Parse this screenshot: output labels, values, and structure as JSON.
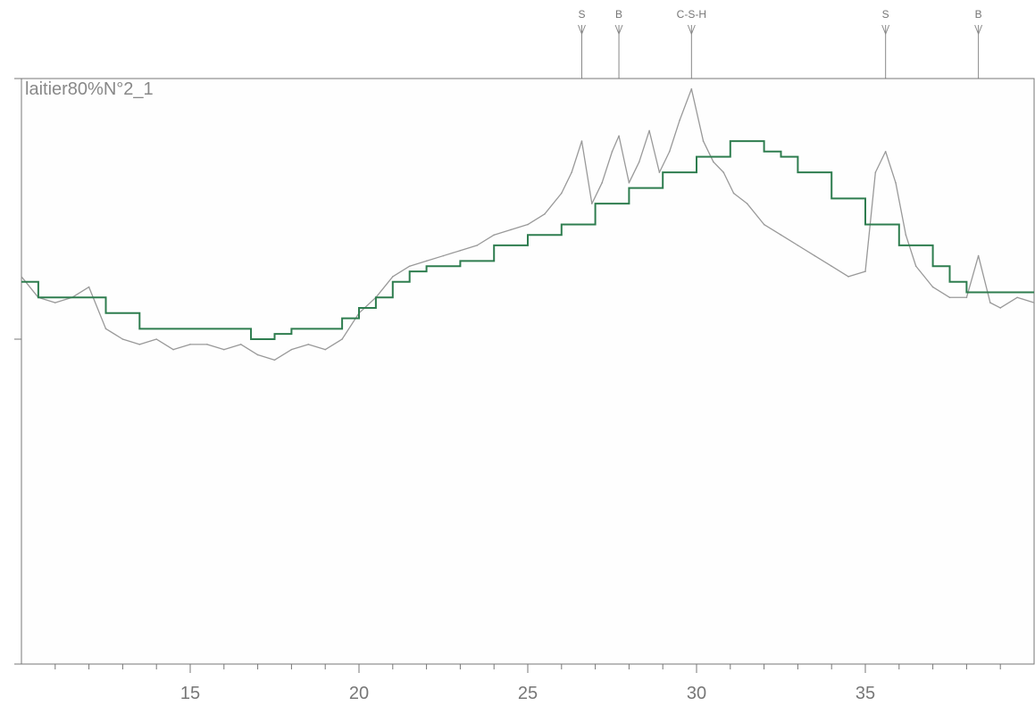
{
  "chart_data": {
    "type": "line",
    "title": "laitier80%N°2_1",
    "xlabel": "",
    "ylabel": "",
    "xlim": [
      10,
      40
    ],
    "ylim": [
      0,
      100
    ],
    "x_ticks": [
      15,
      20,
      25,
      30,
      35
    ],
    "grid": false,
    "peak_markers": [
      {
        "label": "S",
        "x": 26.6
      },
      {
        "label": "B",
        "x": 27.7
      },
      {
        "label": "C-S-H",
        "x": 29.85
      },
      {
        "label": "S",
        "x": 35.6
      },
      {
        "label": "B",
        "x": 38.35
      }
    ],
    "series": [
      {
        "name": "",
        "color": "#999999",
        "kind": "measured",
        "x": [
          10.0,
          10.5,
          11.0,
          11.5,
          12.0,
          12.5,
          13.0,
          13.5,
          14.0,
          14.5,
          15.0,
          15.5,
          16.0,
          16.5,
          17.0,
          17.5,
          18.0,
          18.5,
          19.0,
          19.5,
          20.0,
          20.5,
          21.0,
          21.5,
          22.0,
          22.5,
          23.0,
          23.5,
          24.0,
          24.5,
          25.0,
          25.5,
          26.0,
          26.3,
          26.6,
          26.9,
          27.2,
          27.5,
          27.7,
          28.0,
          28.3,
          28.6,
          28.9,
          29.2,
          29.5,
          29.85,
          30.2,
          30.5,
          30.8,
          31.1,
          31.5,
          32.0,
          32.5,
          33.0,
          33.5,
          34.0,
          34.5,
          35.0,
          35.3,
          35.6,
          35.9,
          36.2,
          36.5,
          37.0,
          37.5,
          38.0,
          38.35,
          38.7,
          39.0,
          39.5,
          40.0
        ],
        "y": [
          62,
          58,
          57,
          58,
          60,
          52,
          50,
          49,
          50,
          48,
          49,
          49,
          48,
          49,
          47,
          46,
          48,
          49,
          48,
          50,
          55,
          58,
          62,
          64,
          65,
          66,
          67,
          68,
          70,
          71,
          72,
          74,
          78,
          82,
          88,
          76,
          80,
          86,
          89,
          80,
          84,
          90,
          82,
          86,
          92,
          98,
          88,
          84,
          82,
          78,
          76,
          72,
          70,
          68,
          66,
          64,
          62,
          63,
          82,
          86,
          80,
          70,
          64,
          60,
          58,
          58,
          66,
          57,
          56,
          58,
          57
        ]
      },
      {
        "name": "",
        "color": "#2e7d4f",
        "kind": "background",
        "x": [
          10.0,
          10.5,
          11.0,
          12.0,
          12.5,
          13.5,
          15.0,
          16.0,
          16.8,
          17.5,
          18.0,
          19.0,
          19.5,
          20.0,
          20.5,
          21.0,
          21.5,
          22.0,
          22.5,
          23.0,
          24.0,
          25.0,
          26.0,
          27.0,
          28.0,
          29.0,
          30.0,
          31.0,
          31.5,
          32.0,
          32.5,
          33.0,
          34.0,
          35.0,
          36.0,
          37.0,
          37.5,
          38.0,
          39.0,
          40.0
        ],
        "y": [
          61,
          58,
          58,
          58,
          55,
          52,
          52,
          52,
          50,
          51,
          52,
          52,
          54,
          56,
          58,
          61,
          63,
          64,
          64,
          65,
          68,
          70,
          72,
          76,
          79,
          82,
          85,
          88,
          88,
          86,
          85,
          82,
          77,
          72,
          68,
          64,
          61,
          59,
          59,
          59
        ]
      }
    ]
  }
}
